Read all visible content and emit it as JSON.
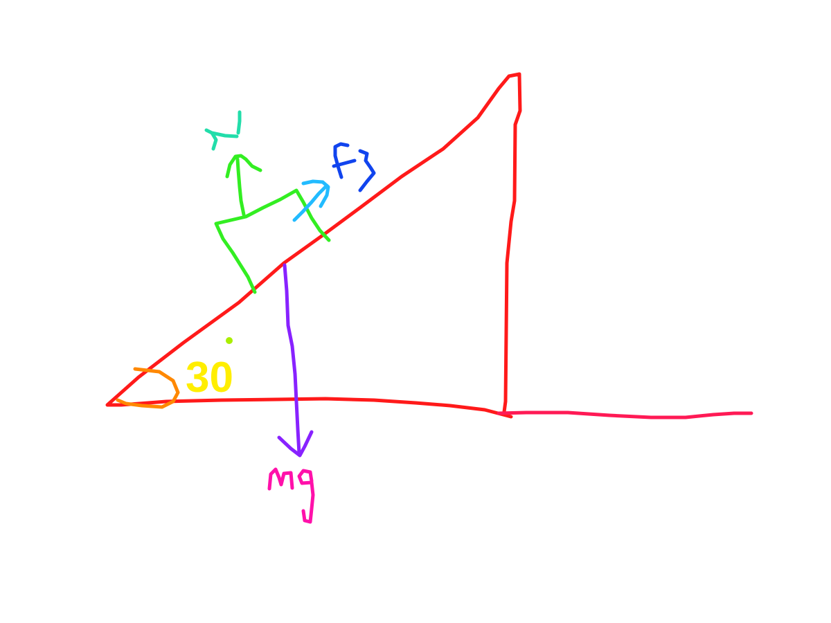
{
  "diagram": {
    "type": "inclined-plane-free-body-diagram",
    "incline_angle_label": "30",
    "forces": {
      "normal": {
        "label": "N"
      },
      "friction": {
        "label": "Fs"
      },
      "weight": {
        "label": "Mg"
      }
    }
  },
  "colors": {
    "incline": "#ff1a1a",
    "ground_extension": "#ff1a55",
    "block": "#33ee22",
    "normal_arrow": "#33ee22",
    "normal_label": "#22ddaa",
    "friction_arrow": "#22bbff",
    "friction_label": "#1144ee",
    "weight_arrow": "#8822ff",
    "weight_label": "#ff11aa",
    "angle_arc": "#ff8800",
    "angle_label": "#ffee00",
    "degree_mark": "#aaee00"
  }
}
